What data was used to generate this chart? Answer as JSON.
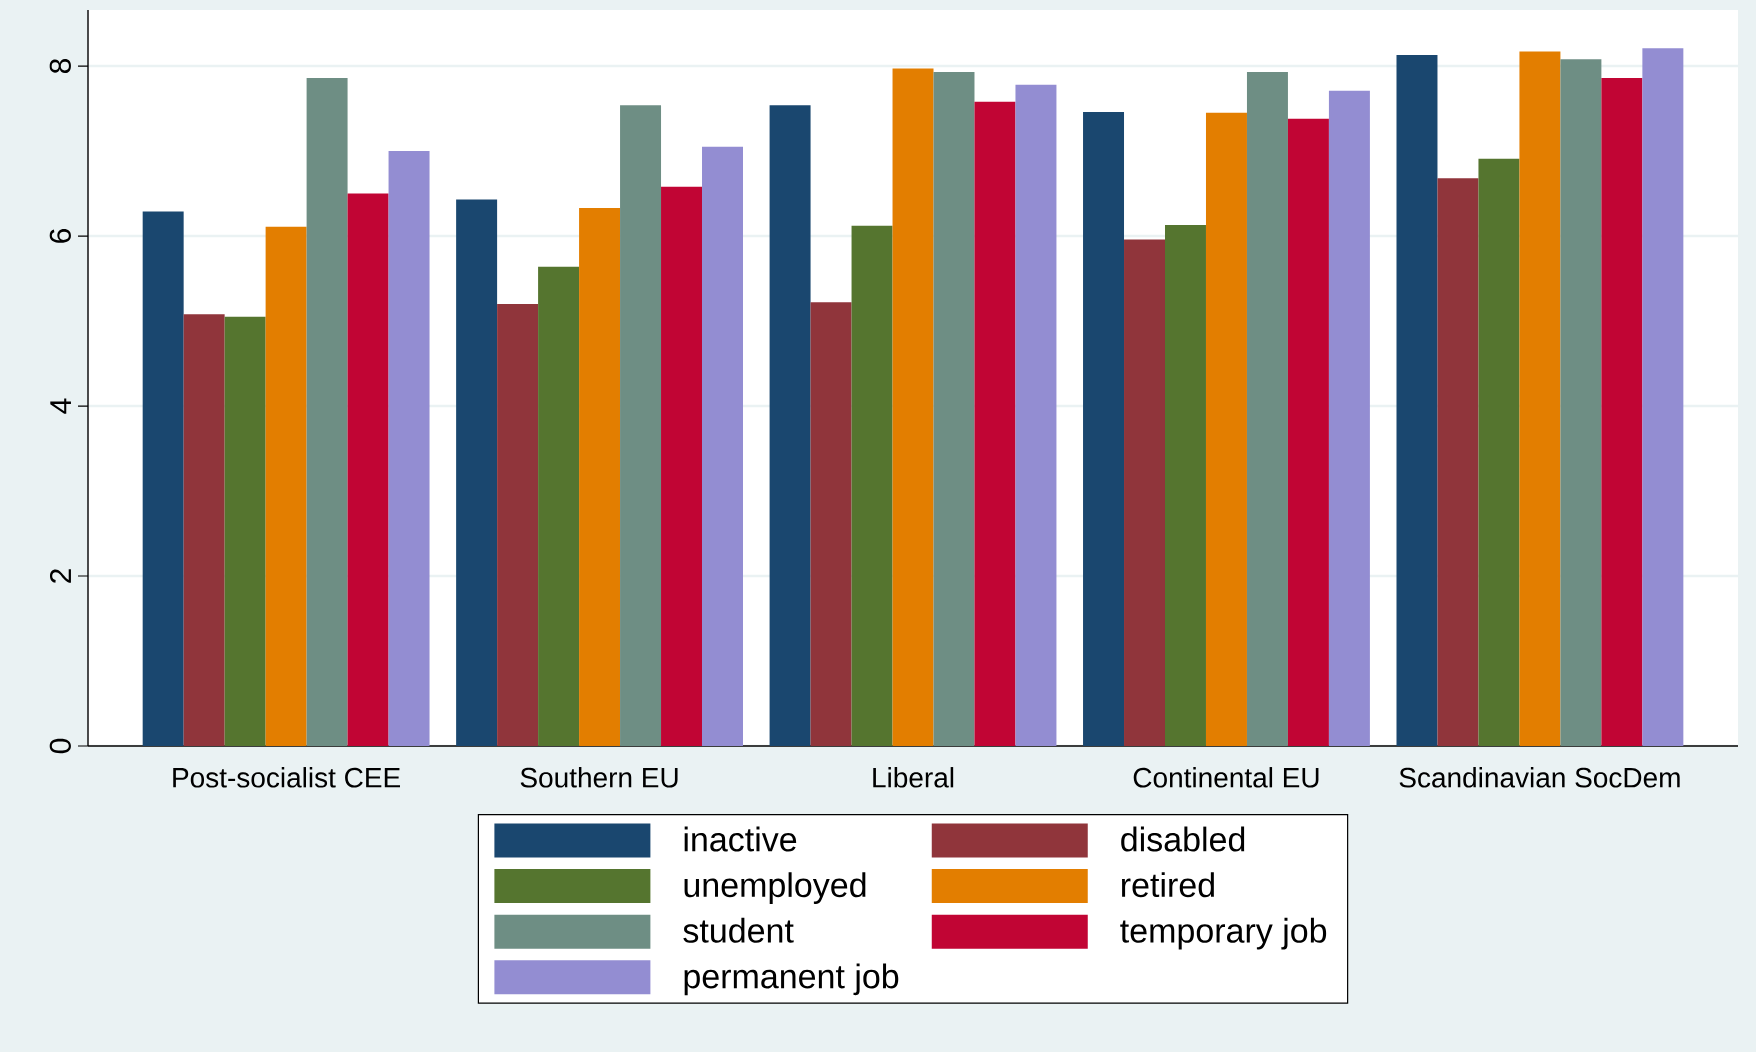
{
  "chart_data": {
    "type": "bar",
    "categories": [
      "Post-socialist CEE",
      "Southern EU",
      "Liberal",
      "Continental EU",
      "Scandinavian SocDem"
    ],
    "series": [
      {
        "name": "inactive",
        "color": "#1a476f",
        "values": [
          6.29,
          6.43,
          7.54,
          7.46,
          8.13
        ]
      },
      {
        "name": "disabled",
        "color": "#90353b",
        "values": [
          5.08,
          5.2,
          5.22,
          5.96,
          6.68
        ]
      },
      {
        "name": "unemployed",
        "color": "#55752f",
        "values": [
          5.05,
          5.64,
          6.12,
          6.13,
          6.91
        ]
      },
      {
        "name": "retired",
        "color": "#e37e00",
        "values": [
          6.11,
          6.33,
          7.97,
          7.45,
          8.17
        ]
      },
      {
        "name": "student",
        "color": "#6e8e84",
        "values": [
          7.86,
          7.54,
          7.93,
          7.93,
          8.08
        ]
      },
      {
        "name": "temporary job",
        "color": "#c10534",
        "values": [
          6.5,
          6.58,
          7.58,
          7.38,
          7.86
        ]
      },
      {
        "name": "permanent job",
        "color": "#938dd2",
        "values": [
          7.0,
          7.05,
          7.78,
          7.71,
          8.21
        ]
      }
    ],
    "ylim": [
      0,
      8.66
    ],
    "yticks": [
      0,
      2,
      4,
      6,
      8
    ],
    "grid": "y",
    "legend": "bottom"
  }
}
